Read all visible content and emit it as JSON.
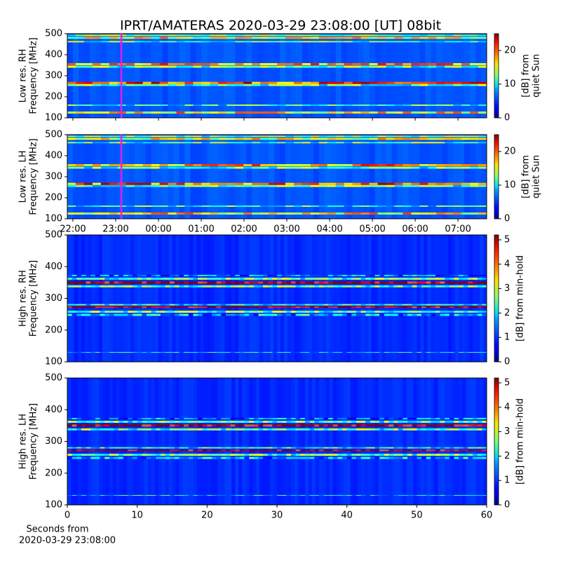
{
  "chart_data": [
    {
      "type": "heatmap",
      "title": "IPRT/AMATERAS 2020-03-29 23:08:00 [UT]   08bit",
      "ylabel": [
        "Low res. RH",
        "Frequency [MHz]"
      ],
      "ylim": [
        100,
        500
      ],
      "yticks": [
        100,
        200,
        300,
        400,
        500
      ],
      "xlim": [
        21.87,
        31.67
      ],
      "xticks": [
        22,
        23,
        24,
        25,
        26,
        27,
        28,
        29,
        30,
        31
      ],
      "xticklabels_visible": false,
      "cursor": {
        "x": 23.133,
        "color": "#e81ee8"
      },
      "colormap": "jet",
      "colorbar": {
        "label": [
          "[dB] from",
          "quiet Sun"
        ],
        "lim": [
          0,
          25
        ],
        "ticks": [
          0,
          10,
          20
        ]
      }
    },
    {
      "type": "heatmap",
      "ylabel": [
        "Low res. LH",
        "Frequency [MHz]"
      ],
      "ylim": [
        100,
        500
      ],
      "yticks": [
        100,
        200,
        300,
        400,
        500
      ],
      "xlim": [
        21.87,
        31.67
      ],
      "xticks": [
        {
          "value": 22,
          "label": "22:00"
        },
        {
          "value": 23,
          "label": "23:00"
        },
        {
          "value": 24,
          "label": "00:00"
        },
        {
          "value": 25,
          "label": "01:00"
        },
        {
          "value": 26,
          "label": "02:00"
        },
        {
          "value": 27,
          "label": "03:00"
        },
        {
          "value": 28,
          "label": "04:00"
        },
        {
          "value": 29,
          "label": "05:00"
        },
        {
          "value": 30,
          "label": "06:00"
        },
        {
          "value": 31,
          "label": "07:00"
        }
      ],
      "xticklabels_visible": true,
      "cursor": {
        "x": 23.133,
        "color": "#e81ee8"
      },
      "colormap": "jet",
      "colorbar": {
        "label": [
          "[dB] from",
          "quiet Sun"
        ],
        "lim": [
          0,
          25
        ],
        "ticks": [
          0,
          10,
          20
        ]
      }
    },
    {
      "type": "heatmap",
      "ylabel": [
        "High res. RH",
        "Frequency [MHz]"
      ],
      "ylim": [
        100,
        500
      ],
      "yticks": [
        100,
        200,
        300,
        400,
        500
      ],
      "xlim": [
        0,
        60
      ],
      "colormap": "jet",
      "colorbar": {
        "label": [
          "[dB] from min-hold"
        ],
        "lim": [
          0,
          5.2
        ],
        "ticks": [
          0,
          1,
          2,
          3,
          4,
          5
        ]
      }
    },
    {
      "type": "heatmap",
      "ylabel": [
        "High res. LH",
        "Frequency [MHz]"
      ],
      "ylim": [
        100,
        500
      ],
      "yticks": [
        100,
        200,
        300,
        400,
        500
      ],
      "xlim": [
        0,
        60
      ],
      "xticks": [
        0,
        10,
        20,
        30,
        40,
        50,
        60
      ],
      "xticklabels_visible": true,
      "xlabel": [
        "Seconds from",
        "2020-03-29 23:08:00"
      ],
      "colormap": "jet",
      "colorbar": {
        "label": [
          "[dB] from min-hold"
        ],
        "lim": [
          0,
          5.2
        ],
        "ticks": [
          0,
          1,
          2,
          3,
          4,
          5
        ]
      }
    }
  ]
}
